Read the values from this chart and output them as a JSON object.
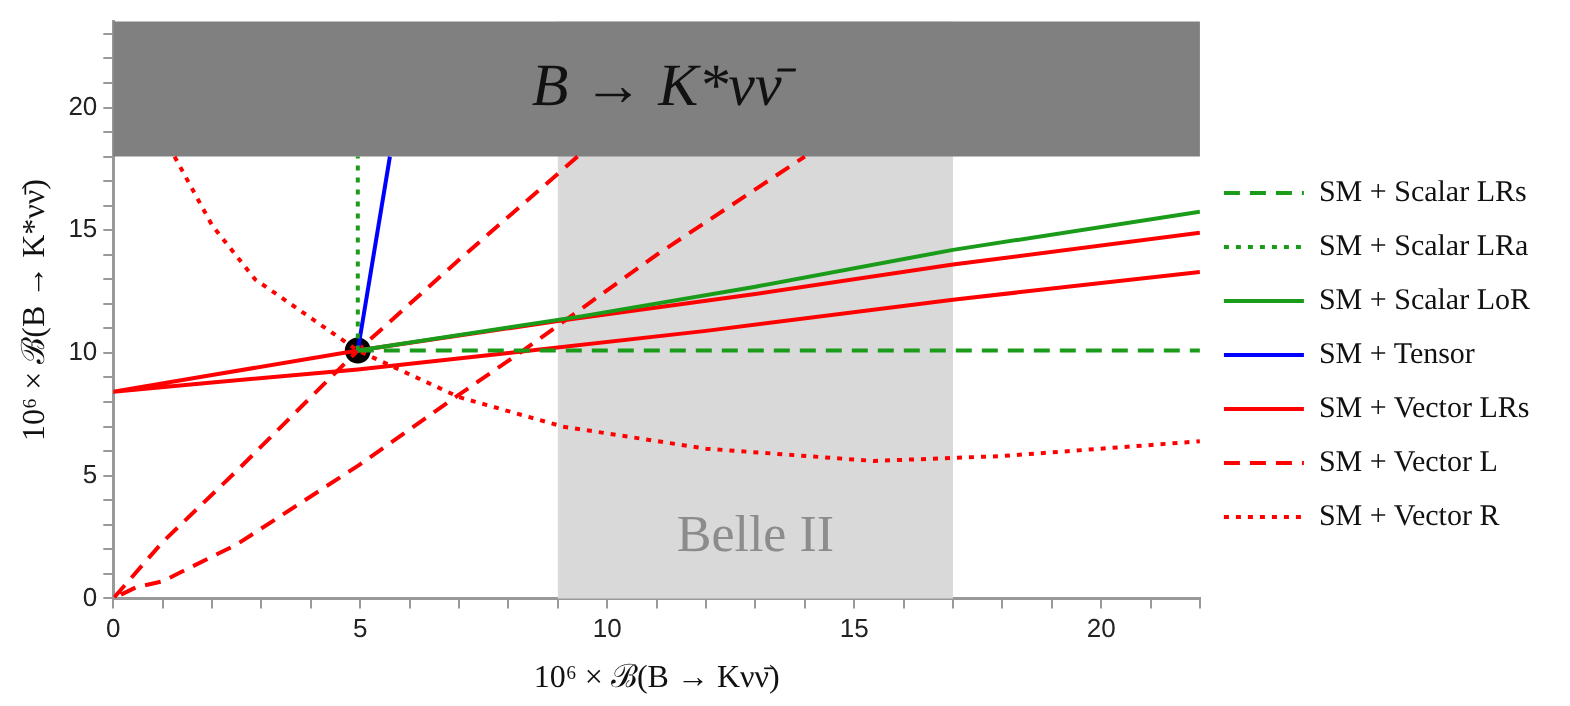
{
  "chart_data": {
    "type": "line",
    "xlabel": "10⁶ × ℬ(B → Kνν̄)",
    "ylabel": "10⁶ × ℬ(B → K*νν̄)",
    "xlim": [
      0,
      22
    ],
    "ylim": [
      0,
      23.5
    ],
    "xticks": [
      0,
      {
        "value": 1,
        "label": null
      },
      {
        "value": 2,
        "label": null
      },
      {
        "value": 3,
        "label": null
      },
      {
        "value": 4,
        "label": null
      },
      5,
      {
        "value": 6,
        "label": null
      },
      {
        "value": 7,
        "label": null
      },
      {
        "value": 8,
        "label": null
      },
      {
        "value": 9,
        "label": null
      },
      10,
      {
        "value": 11,
        "label": null
      },
      {
        "value": 12,
        "label": null
      },
      {
        "value": 13,
        "label": null
      },
      {
        "value": 14,
        "label": null
      },
      15,
      {
        "value": 16,
        "label": null
      },
      {
        "value": 17,
        "label": null
      },
      {
        "value": 18,
        "label": null
      },
      {
        "value": 19,
        "label": null
      },
      20,
      {
        "value": 21,
        "label": null
      },
      {
        "value": 22,
        "label": null
      }
    ],
    "yticks": [
      0,
      {
        "value": 1,
        "label": null
      },
      {
        "value": 2,
        "label": null
      },
      {
        "value": 3,
        "label": null
      },
      {
        "value": 4,
        "label": null
      },
      5,
      {
        "value": 6,
        "label": null
      },
      {
        "value": 7,
        "label": null
      },
      {
        "value": 8,
        "label": null
      },
      {
        "value": 9,
        "label": null
      },
      10,
      {
        "value": 11,
        "label": null
      },
      {
        "value": 12,
        "label": null
      },
      {
        "value": 13,
        "label": null
      },
      {
        "value": 14,
        "label": null
      },
      15,
      {
        "value": 16,
        "label": null
      },
      {
        "value": 17,
        "label": null
      },
      {
        "value": 18,
        "label": null
      },
      {
        "value": 19,
        "label": null
      },
      20,
      {
        "value": 21,
        "label": null
      },
      {
        "value": 22,
        "label": null
      },
      {
        "value": 23,
        "label": null
      }
    ],
    "grid": false,
    "legend": "right",
    "bands": [
      {
        "axis": "x",
        "from": 9,
        "to": 17,
        "label": "Belle II",
        "color": "#d9d9d9"
      },
      {
        "axis": "y",
        "from": 18,
        "to": 23.5,
        "label": "B → K*νν̄",
        "color": "#808080"
      }
    ],
    "series": [
      {
        "name": "SM + Scalar LRs",
        "color": "#1a9c1a",
        "line_style": "dashed",
        "x": [
          4.95,
          22
        ],
        "values": [
          10.1,
          10.1
        ]
      },
      {
        "name": "SM + Scalar LRa",
        "color": "#1a9c1a",
        "line_style": "dotted",
        "x": [
          4.95,
          4.95
        ],
        "values": [
          10.1,
          18
        ]
      },
      {
        "name": "SM + Scalar LoR",
        "color": "#1a9c1a",
        "line_style": "solid",
        "x": [
          4.95,
          9.5,
          13,
          17,
          22
        ],
        "values": [
          10.1,
          11.5,
          12.7,
          14.2,
          15.75
        ]
      },
      {
        "name": "SM + Tensor",
        "color": "#0000ff",
        "line_style": "solid",
        "x": [
          4.95,
          5.6
        ],
        "values": [
          10.1,
          18
        ]
      },
      {
        "name": "SM + Vector LRs",
        "color": "#ff0000",
        "line_style": "solid",
        "x": [
          22,
          17,
          12,
          8,
          4.95,
          2,
          0,
          2,
          4.95,
          9,
          13,
          17,
          22
        ],
        "values": [
          13.3,
          12.17,
          10.9,
          10.0,
          9.33,
          8.8,
          8.42,
          9.1,
          10.1,
          11.3,
          12.4,
          13.6,
          14.9
        ]
      },
      {
        "name": "SM + Vector L",
        "color": "#ff0000",
        "line_style": "dashed",
        "x": [
          9.4,
          7,
          4.95,
          2.5,
          1,
          0,
          0.46,
          1,
          2.5,
          4.95,
          7,
          8.3,
          11,
          14
        ],
        "values": [
          18,
          13.8,
          10.1,
          5.2,
          2.3,
          0,
          0.45,
          0.7,
          2.2,
          5.4,
          8.3,
          10.1,
          14,
          18
        ]
      },
      {
        "name": "SM + Vector R",
        "color": "#ff0000",
        "line_style": "dotted",
        "x": [
          1.24,
          2,
          2.87,
          4.95,
          7,
          9.1,
          12,
          15.4,
          18,
          22
        ],
        "values": [
          18,
          15.2,
          13.0,
          10.1,
          8.2,
          7.0,
          6.1,
          5.6,
          5.8,
          6.4
        ]
      },
      {
        "type": "scatter",
        "marker": "circle",
        "color": "#000000",
        "x": [
          4.95
        ],
        "values": [
          10.1
        ]
      }
    ]
  }
}
